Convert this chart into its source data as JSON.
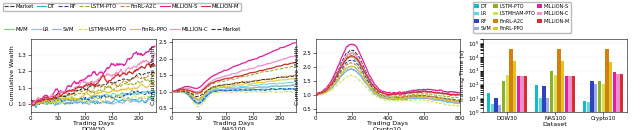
{
  "line_styles": {
    "Market": {
      "ls": "--",
      "lw": 0.7,
      "color": "#333333",
      "zorder": 3
    },
    "MVM": {
      "ls": "-",
      "lw": 0.7,
      "color": "#7fc97f",
      "zorder": 2
    },
    "DT": {
      "ls": "-",
      "lw": 0.7,
      "color": "#17b8c8",
      "zorder": 2
    },
    "LR": {
      "ls": "-",
      "lw": 0.7,
      "color": "#56dce0",
      "zorder": 2
    },
    "RF": {
      "ls": "--",
      "lw": 0.7,
      "color": "#3040c0",
      "zorder": 2
    },
    "SVM": {
      "ls": "-",
      "lw": 0.7,
      "color": "#9baede",
      "zorder": 2
    },
    "LSTM-PTO": {
      "ls": "--",
      "lw": 0.7,
      "color": "#90b020",
      "zorder": 2
    },
    "LSTMHAM-PTO": {
      "ls": "--",
      "lw": 0.7,
      "color": "#d4e050",
      "zorder": 2
    },
    "FinRL-A2C": {
      "ls": "--",
      "lw": 0.7,
      "color": "#d4800a",
      "zorder": 2
    },
    "FinRL-PPO": {
      "ls": "-",
      "lw": 0.7,
      "color": "#e8c020",
      "zorder": 2
    },
    "MILLION-S": {
      "ls": "-",
      "lw": 0.9,
      "color": "#e020a0",
      "zorder": 4
    },
    "MILLION-C": {
      "ls": "-",
      "lw": 0.9,
      "color": "#f090c8",
      "zorder": 4
    },
    "MILLION-M": {
      "ls": "-",
      "lw": 0.9,
      "color": "#d03030",
      "zorder": 4
    }
  },
  "legend_row1": [
    {
      "label": "Market",
      "ls": "--",
      "color": "#333333"
    },
    {
      "label": "DT",
      "ls": "-",
      "color": "#17b8c8"
    },
    {
      "label": "RF",
      "ls": "--",
      "color": "#3040c0"
    },
    {
      "label": "LSTM-PTO",
      "ls": "--",
      "color": "#90b020"
    },
    {
      "label": "FinRL-A2C",
      "ls": "--",
      "color": "#d4800a"
    },
    {
      "label": "MILLION-S",
      "ls": "-",
      "color": "#e020a0"
    },
    {
      "label": "MILLION-M",
      "ls": "-",
      "color": "#d03030"
    }
  ],
  "legend_row2": [
    {
      "label": "MVM",
      "ls": "-",
      "color": "#7fc97f"
    },
    {
      "label": "LR",
      "ls": "-",
      "color": "#56dce0"
    },
    {
      "label": "SVM",
      "ls": "-",
      "color": "#9baede"
    },
    {
      "label": "LSTMHAM-PTO",
      "ls": "--",
      "color": "#d4e050"
    },
    {
      "label": "FinRL-PPO",
      "ls": "-",
      "color": "#e8c020"
    },
    {
      "label": "MILLION-C",
      "ls": "-",
      "color": "#f090c8"
    },
    {
      "label": "Market",
      "ls": "--",
      "color": "#333333"
    }
  ],
  "bar_methods": [
    "DT",
    "LR",
    "RF",
    "SVM",
    "LSTM-PTO",
    "LSTMHAM-PTO",
    "FinRL-A2C",
    "FinRL-PPO",
    "MILLION-S",
    "MILLION-C",
    "MILLION-M"
  ],
  "bar_colors": [
    "#17b8c8",
    "#56dce0",
    "#3040c0",
    "#9baede",
    "#90b020",
    "#d4e050",
    "#d4800a",
    "#e8c020",
    "#e020a0",
    "#f090c8",
    "#d03030"
  ],
  "bar_values": {
    "DOW30": [
      25,
      4,
      10,
      3,
      180,
      500,
      40000,
      5000,
      400,
      400,
      400
    ],
    "NAS100": [
      90,
      10,
      70,
      10,
      900,
      500,
      40000,
      5000,
      400,
      400,
      400
    ],
    "Crypto10": [
      6,
      5,
      180,
      100,
      180,
      100,
      40000,
      4000,
      800,
      600,
      600
    ]
  },
  "bar_legend_col1": [
    {
      "label": "DT",
      "color": "#17b8c8"
    },
    {
      "label": "LR",
      "color": "#56dce0"
    },
    {
      "label": "RF",
      "color": "#3040c0"
    },
    {
      "label": "SVM",
      "color": "#9baede"
    }
  ],
  "bar_legend_col2": [
    {
      "label": "LSTM-PTO",
      "color": "#90b020"
    },
    {
      "label": "LSTMHAM-PTO",
      "color": "#d4e050"
    },
    {
      "label": "FinRL-A2C",
      "color": "#d4800a"
    },
    {
      "label": "FinRL-PPO",
      "color": "#e8c020"
    }
  ],
  "bar_legend_col3": [
    {
      "label": "MILLION-S",
      "color": "#e020a0"
    },
    {
      "label": "MILLION-C",
      "color": "#f090c8"
    },
    {
      "label": "MILLION-M",
      "color": "#d03030"
    }
  ]
}
